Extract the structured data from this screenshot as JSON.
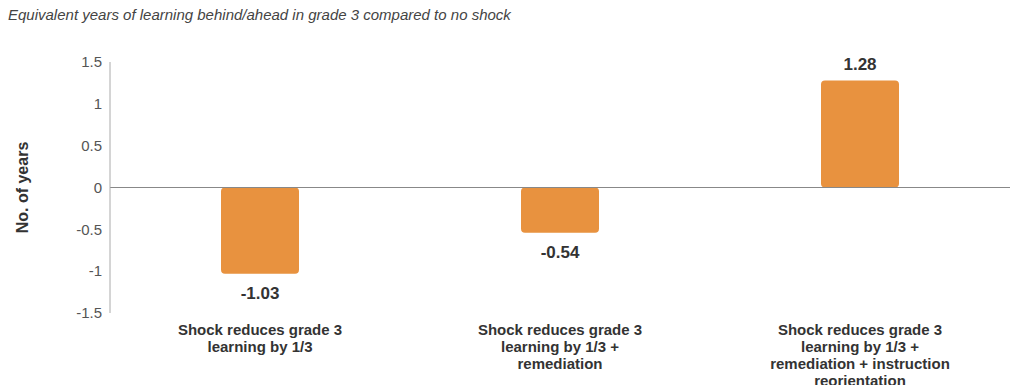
{
  "chart_data": {
    "type": "bar",
    "subtitle": "Equivalent years of learning behind/ahead in grade 3 compared to no shock",
    "y_label": "No. of years",
    "categories": [
      "Shock reduces grade 3 learning by 1/3",
      "Shock reduces grade 3 learning by 1/3 + remediation",
      "Shock reduces grade 3 learning by 1/3 + remediation + instruction reorientation"
    ],
    "values": [
      -1.03,
      -0.54,
      1.28
    ],
    "color": "#e8923f",
    "ylim": [
      -1.5,
      1.5
    ],
    "yticks": [
      -1.5,
      -1,
      -0.5,
      0,
      0.5,
      1,
      1.5
    ],
    "grid": false,
    "data_labels": true
  }
}
